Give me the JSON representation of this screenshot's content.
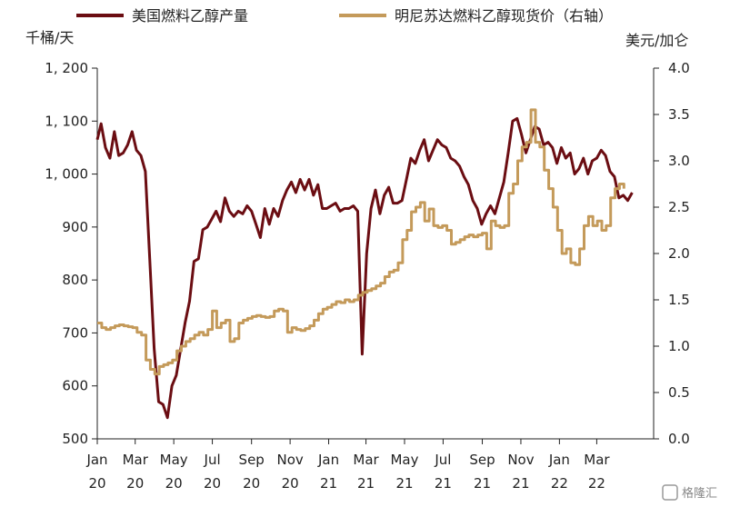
{
  "chart_data": {
    "type": "line",
    "title": "",
    "legend_position": "top",
    "grid": false,
    "y_left": {
      "unit": "千桶/天",
      "range": [
        500,
        1200
      ],
      "ticks": [
        500,
        600,
        700,
        800,
        900,
        1000,
        1100,
        1200
      ],
      "tick_labels": [
        "500",
        "600",
        "700",
        "800",
        "900",
        "1, 000",
        "1, 100",
        "1, 200"
      ]
    },
    "y_right": {
      "unit": "美元/加仑",
      "range": [
        0,
        4
      ],
      "ticks": [
        0,
        0.5,
        1,
        1.5,
        2,
        2.5,
        3,
        3.5,
        4
      ],
      "tick_labels": [
        "0.0",
        "0.5",
        "1.0",
        "1.5",
        "2.0",
        "2.5",
        "3.0",
        "3.5",
        "4.0"
      ]
    },
    "x_range": [
      "2020-01-01",
      "2022-05-30"
    ],
    "x_ticks": [
      {
        "date": "2020-01-01",
        "month": "Jan",
        "year": "20"
      },
      {
        "date": "2020-03-01",
        "month": "Mar",
        "year": "20"
      },
      {
        "date": "2020-05-01",
        "month": "May",
        "year": "20"
      },
      {
        "date": "2020-07-01",
        "month": "Jul",
        "year": "20"
      },
      {
        "date": "2020-09-01",
        "month": "Sep",
        "year": "20"
      },
      {
        "date": "2020-11-01",
        "month": "Nov",
        "year": "20"
      },
      {
        "date": "2021-01-01",
        "month": "Jan",
        "year": "21"
      },
      {
        "date": "2021-03-01",
        "month": "Mar",
        "year": "21"
      },
      {
        "date": "2021-05-01",
        "month": "May",
        "year": "21"
      },
      {
        "date": "2021-07-01",
        "month": "Jul",
        "year": "21"
      },
      {
        "date": "2021-09-01",
        "month": "Sep",
        "year": "21"
      },
      {
        "date": "2021-11-01",
        "month": "Nov",
        "year": "21"
      },
      {
        "date": "2022-01-01",
        "month": "Jan",
        "year": "22"
      },
      {
        "date": "2022-03-01",
        "month": "Mar",
        "year": "22"
      }
    ],
    "series": [
      {
        "name": "美国燃料乙醇产量",
        "axis": "left",
        "color": "#6b0d12",
        "points": [
          [
            "2020-01-01",
            1065
          ],
          [
            "2020-01-07",
            1095
          ],
          [
            "2020-01-14",
            1050
          ],
          [
            "2020-01-21",
            1030
          ],
          [
            "2020-01-28",
            1080
          ],
          [
            "2020-02-04",
            1035
          ],
          [
            "2020-02-11",
            1040
          ],
          [
            "2020-02-18",
            1055
          ],
          [
            "2020-02-25",
            1080
          ],
          [
            "2020-03-03",
            1045
          ],
          [
            "2020-03-10",
            1035
          ],
          [
            "2020-03-17",
            1005
          ],
          [
            "2020-03-24",
            840
          ],
          [
            "2020-03-31",
            670
          ],
          [
            "2020-04-07",
            570
          ],
          [
            "2020-04-14",
            565
          ],
          [
            "2020-04-21",
            540
          ],
          [
            "2020-04-28",
            600
          ],
          [
            "2020-05-05",
            620
          ],
          [
            "2020-05-12",
            670
          ],
          [
            "2020-05-19",
            720
          ],
          [
            "2020-05-26",
            760
          ],
          [
            "2020-06-02",
            835
          ],
          [
            "2020-06-09",
            840
          ],
          [
            "2020-06-16",
            895
          ],
          [
            "2020-06-23",
            900
          ],
          [
            "2020-06-30",
            915
          ],
          [
            "2020-07-07",
            930
          ],
          [
            "2020-07-14",
            910
          ],
          [
            "2020-07-21",
            955
          ],
          [
            "2020-07-28",
            930
          ],
          [
            "2020-08-04",
            920
          ],
          [
            "2020-08-11",
            930
          ],
          [
            "2020-08-18",
            925
          ],
          [
            "2020-08-25",
            940
          ],
          [
            "2020-09-01",
            930
          ],
          [
            "2020-09-08",
            905
          ],
          [
            "2020-09-15",
            880
          ],
          [
            "2020-09-22",
            935
          ],
          [
            "2020-09-29",
            905
          ],
          [
            "2020-10-06",
            935
          ],
          [
            "2020-10-13",
            920
          ],
          [
            "2020-10-20",
            950
          ],
          [
            "2020-10-27",
            970
          ],
          [
            "2020-11-03",
            985
          ],
          [
            "2020-11-10",
            965
          ],
          [
            "2020-11-17",
            990
          ],
          [
            "2020-11-24",
            970
          ],
          [
            "2020-12-01",
            990
          ],
          [
            "2020-12-08",
            960
          ],
          [
            "2020-12-15",
            980
          ],
          [
            "2020-12-22",
            935
          ],
          [
            "2020-12-29",
            935
          ],
          [
            "2021-01-05",
            940
          ],
          [
            "2021-01-12",
            945
          ],
          [
            "2021-01-19",
            930
          ],
          [
            "2021-01-26",
            935
          ],
          [
            "2021-02-02",
            935
          ],
          [
            "2021-02-09",
            940
          ],
          [
            "2021-02-16",
            930
          ],
          [
            "2021-02-23",
            660
          ],
          [
            "2021-03-02",
            850
          ],
          [
            "2021-03-09",
            935
          ],
          [
            "2021-03-16",
            970
          ],
          [
            "2021-03-23",
            925
          ],
          [
            "2021-03-30",
            960
          ],
          [
            "2021-04-06",
            975
          ],
          [
            "2021-04-13",
            945
          ],
          [
            "2021-04-20",
            945
          ],
          [
            "2021-04-27",
            950
          ],
          [
            "2021-05-04",
            990
          ],
          [
            "2021-05-11",
            1030
          ],
          [
            "2021-05-18",
            1020
          ],
          [
            "2021-05-25",
            1045
          ],
          [
            "2021-06-01",
            1065
          ],
          [
            "2021-06-08",
            1025
          ],
          [
            "2021-06-15",
            1045
          ],
          [
            "2021-06-22",
            1065
          ],
          [
            "2021-06-29",
            1055
          ],
          [
            "2021-07-06",
            1050
          ],
          [
            "2021-07-13",
            1030
          ],
          [
            "2021-07-20",
            1025
          ],
          [
            "2021-07-27",
            1015
          ],
          [
            "2021-08-03",
            995
          ],
          [
            "2021-08-10",
            980
          ],
          [
            "2021-08-17",
            950
          ],
          [
            "2021-08-24",
            935
          ],
          [
            "2021-08-31",
            905
          ],
          [
            "2021-09-07",
            925
          ],
          [
            "2021-09-14",
            940
          ],
          [
            "2021-09-21",
            925
          ],
          [
            "2021-09-28",
            955
          ],
          [
            "2021-10-05",
            985
          ],
          [
            "2021-10-12",
            1040
          ],
          [
            "2021-10-19",
            1100
          ],
          [
            "2021-10-26",
            1105
          ],
          [
            "2021-11-02",
            1075
          ],
          [
            "2021-11-09",
            1040
          ],
          [
            "2021-11-16",
            1065
          ],
          [
            "2021-11-23",
            1090
          ],
          [
            "2021-11-30",
            1085
          ],
          [
            "2021-12-07",
            1055
          ],
          [
            "2021-12-14",
            1060
          ],
          [
            "2021-12-21",
            1050
          ],
          [
            "2021-12-28",
            1020
          ],
          [
            "2022-01-04",
            1050
          ],
          [
            "2022-01-11",
            1030
          ],
          [
            "2022-01-18",
            1040
          ],
          [
            "2022-01-25",
            1000
          ],
          [
            "2022-02-01",
            1010
          ],
          [
            "2022-02-08",
            1030
          ],
          [
            "2022-02-15",
            1000
          ],
          [
            "2022-02-22",
            1025
          ],
          [
            "2022-03-01",
            1030
          ],
          [
            "2022-03-08",
            1045
          ],
          [
            "2022-03-15",
            1035
          ],
          [
            "2022-03-22",
            1005
          ],
          [
            "2022-03-29",
            995
          ],
          [
            "2022-04-05",
            955
          ],
          [
            "2022-04-12",
            960
          ],
          [
            "2022-04-19",
            950
          ],
          [
            "2022-04-26",
            965
          ]
        ]
      },
      {
        "name": "明尼苏达燃料乙醇现货价（右轴）",
        "axis": "right",
        "color": "#c49a5a",
        "points": [
          [
            "2020-01-01",
            1.25
          ],
          [
            "2020-01-08",
            1.2
          ],
          [
            "2020-01-15",
            1.18
          ],
          [
            "2020-01-22",
            1.2
          ],
          [
            "2020-01-29",
            1.22
          ],
          [
            "2020-02-05",
            1.23
          ],
          [
            "2020-02-12",
            1.22
          ],
          [
            "2020-02-19",
            1.21
          ],
          [
            "2020-02-26",
            1.2
          ],
          [
            "2020-03-04",
            1.15
          ],
          [
            "2020-03-11",
            1.12
          ],
          [
            "2020-03-18",
            0.85
          ],
          [
            "2020-03-25",
            0.75
          ],
          [
            "2020-04-01",
            0.7
          ],
          [
            "2020-04-08",
            0.78
          ],
          [
            "2020-04-15",
            0.8
          ],
          [
            "2020-04-22",
            0.82
          ],
          [
            "2020-04-29",
            0.85
          ],
          [
            "2020-05-06",
            0.95
          ],
          [
            "2020-05-13",
            1.0
          ],
          [
            "2020-05-20",
            1.05
          ],
          [
            "2020-05-27",
            1.08
          ],
          [
            "2020-06-03",
            1.12
          ],
          [
            "2020-06-10",
            1.15
          ],
          [
            "2020-06-17",
            1.12
          ],
          [
            "2020-06-24",
            1.18
          ],
          [
            "2020-07-01",
            1.38
          ],
          [
            "2020-07-08",
            1.2
          ],
          [
            "2020-07-15",
            1.25
          ],
          [
            "2020-07-22",
            1.28
          ],
          [
            "2020-07-29",
            1.05
          ],
          [
            "2020-08-05",
            1.08
          ],
          [
            "2020-08-12",
            1.25
          ],
          [
            "2020-08-19",
            1.28
          ],
          [
            "2020-08-26",
            1.3
          ],
          [
            "2020-09-02",
            1.32
          ],
          [
            "2020-09-09",
            1.33
          ],
          [
            "2020-09-16",
            1.32
          ],
          [
            "2020-09-23",
            1.31
          ],
          [
            "2020-09-30",
            1.32
          ],
          [
            "2020-10-07",
            1.38
          ],
          [
            "2020-10-14",
            1.4
          ],
          [
            "2020-10-21",
            1.38
          ],
          [
            "2020-10-28",
            1.15
          ],
          [
            "2020-11-04",
            1.2
          ],
          [
            "2020-11-11",
            1.18
          ],
          [
            "2020-11-18",
            1.17
          ],
          [
            "2020-11-25",
            1.19
          ],
          [
            "2020-12-02",
            1.22
          ],
          [
            "2020-12-09",
            1.28
          ],
          [
            "2020-12-16",
            1.35
          ],
          [
            "2020-12-23",
            1.4
          ],
          [
            "2020-12-30",
            1.42
          ],
          [
            "2021-01-06",
            1.45
          ],
          [
            "2021-01-13",
            1.48
          ],
          [
            "2021-01-20",
            1.47
          ],
          [
            "2021-01-27",
            1.5
          ],
          [
            "2021-02-03",
            1.48
          ],
          [
            "2021-02-10",
            1.5
          ],
          [
            "2021-02-17",
            1.55
          ],
          [
            "2021-02-24",
            1.58
          ],
          [
            "2021-03-03",
            1.6
          ],
          [
            "2021-03-10",
            1.62
          ],
          [
            "2021-03-17",
            1.65
          ],
          [
            "2021-03-24",
            1.68
          ],
          [
            "2021-03-31",
            1.75
          ],
          [
            "2021-04-07",
            1.8
          ],
          [
            "2021-04-14",
            1.82
          ],
          [
            "2021-04-21",
            1.9
          ],
          [
            "2021-04-28",
            2.15
          ],
          [
            "2021-05-05",
            2.25
          ],
          [
            "2021-05-12",
            2.45
          ],
          [
            "2021-05-19",
            2.5
          ],
          [
            "2021-05-26",
            2.55
          ],
          [
            "2021-06-02",
            2.35
          ],
          [
            "2021-06-09",
            2.48
          ],
          [
            "2021-06-16",
            2.3
          ],
          [
            "2021-06-23",
            2.28
          ],
          [
            "2021-06-30",
            2.3
          ],
          [
            "2021-07-07",
            2.25
          ],
          [
            "2021-07-14",
            2.1
          ],
          [
            "2021-07-21",
            2.12
          ],
          [
            "2021-07-28",
            2.15
          ],
          [
            "2021-08-04",
            2.18
          ],
          [
            "2021-08-11",
            2.2
          ],
          [
            "2021-08-18",
            2.18
          ],
          [
            "2021-08-25",
            2.2
          ],
          [
            "2021-09-01",
            2.22
          ],
          [
            "2021-09-08",
            2.05
          ],
          [
            "2021-09-15",
            2.35
          ],
          [
            "2021-09-22",
            2.3
          ],
          [
            "2021-09-29",
            2.28
          ],
          [
            "2021-10-06",
            2.3
          ],
          [
            "2021-10-13",
            2.65
          ],
          [
            "2021-10-20",
            2.75
          ],
          [
            "2021-10-27",
            3.0
          ],
          [
            "2021-11-03",
            3.15
          ],
          [
            "2021-11-10",
            3.2
          ],
          [
            "2021-11-17",
            3.55
          ],
          [
            "2021-11-24",
            3.2
          ],
          [
            "2021-12-01",
            3.15
          ],
          [
            "2021-12-08",
            2.9
          ],
          [
            "2021-12-15",
            2.7
          ],
          [
            "2021-12-22",
            2.5
          ],
          [
            "2021-12-29",
            2.25
          ],
          [
            "2022-01-05",
            2.0
          ],
          [
            "2022-01-12",
            2.05
          ],
          [
            "2022-01-19",
            1.9
          ],
          [
            "2022-01-26",
            1.88
          ],
          [
            "2022-02-02",
            2.05
          ],
          [
            "2022-02-09",
            2.3
          ],
          [
            "2022-02-16",
            2.4
          ],
          [
            "2022-02-23",
            2.3
          ],
          [
            "2022-03-02",
            2.35
          ],
          [
            "2022-03-09",
            2.25
          ],
          [
            "2022-03-16",
            2.3
          ],
          [
            "2022-03-23",
            2.6
          ],
          [
            "2022-03-30",
            2.7
          ],
          [
            "2022-04-06",
            2.75
          ],
          [
            "2022-04-13",
            2.7
          ]
        ]
      }
    ]
  },
  "watermark": "格隆汇"
}
